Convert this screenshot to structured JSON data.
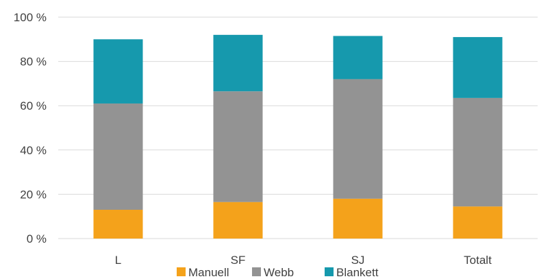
{
  "chart_data": {
    "type": "bar",
    "stacked": true,
    "categories": [
      "L",
      "SF",
      "SJ",
      "Totalt"
    ],
    "series": [
      {
        "name": "Manuell",
        "color": "#f4a21b",
        "values": [
          13,
          16.5,
          18,
          14.5
        ]
      },
      {
        "name": "Webb",
        "color": "#939393",
        "values": [
          48,
          50,
          54,
          49
        ]
      },
      {
        "name": "Blankett",
        "color": "#1699ad",
        "values": [
          29,
          25.5,
          19.5,
          27.5
        ]
      }
    ],
    "ylim": [
      0,
      100
    ],
    "yticks": [
      "0 %",
      "20 %",
      "40 %",
      "60 %",
      "80 %",
      "100 %"
    ],
    "ytick_values": [
      0,
      20,
      40,
      60,
      80,
      100
    ],
    "grid": true,
    "legend_position": "bottom",
    "title": "",
    "xlabel": "",
    "ylabel": ""
  }
}
